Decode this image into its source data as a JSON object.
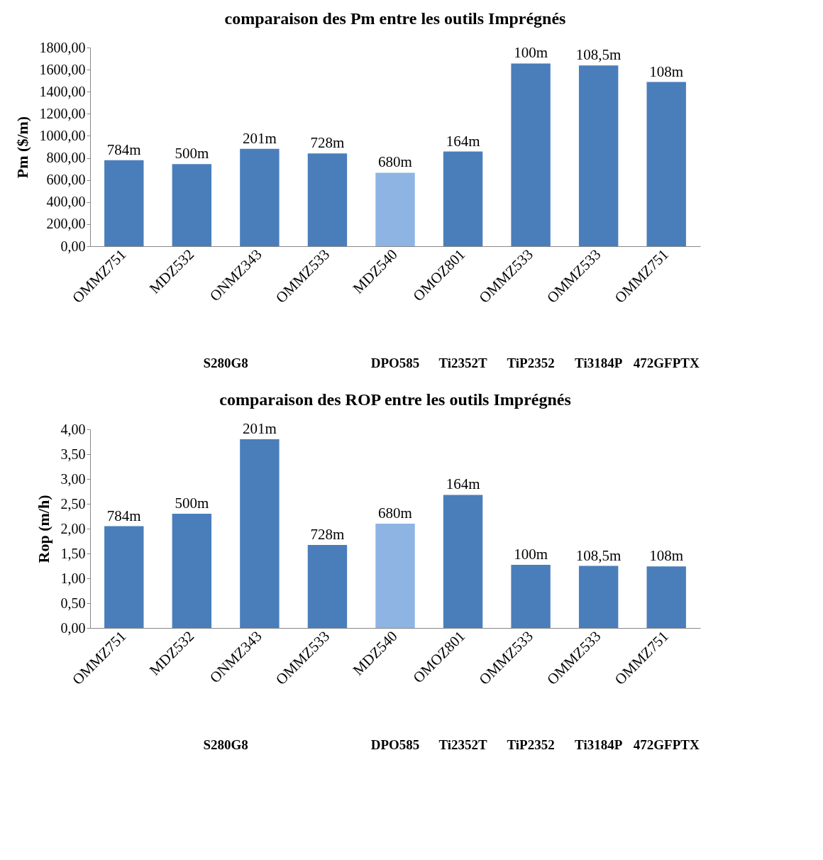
{
  "chart_data": [
    {
      "type": "bar",
      "title": "comparaison des Pm entre les outils  Imprégnés",
      "ylabel": "Pm ($/m)",
      "categories": [
        "OMMZ751",
        "MDZ532",
        "ONMZ343",
        "OMMZ533",
        "MDZ540",
        "OMOZ801",
        "OMMZ533",
        "OMMZ533",
        "OMMZ751"
      ],
      "values": [
        780,
        744,
        882,
        840,
        666,
        858,
        1656,
        1638,
        1488
      ],
      "colors": [
        "#4a7ebb",
        "#4a7ebb",
        "#4a7ebb",
        "#4a7ebb",
        "#8eb4e3",
        "#4a7ebb",
        "#4a7ebb",
        "#4a7ebb",
        "#4a7ebb"
      ],
      "ylim": [
        0,
        1800
      ],
      "yticks": [
        {
          "value": 0,
          "label": "0,00"
        },
        {
          "value": 200,
          "label": "200,00"
        },
        {
          "value": 400,
          "label": "400,00"
        },
        {
          "value": 600,
          "label": "600,00"
        },
        {
          "value": 800,
          "label": "800,00"
        },
        {
          "value": 1000,
          "label": "1000,00"
        },
        {
          "value": 1200,
          "label": "1200,00"
        },
        {
          "value": 1400,
          "label": "1400,00"
        },
        {
          "value": 1600,
          "label": "1600,00"
        },
        {
          "value": 1800,
          "label": "1800,00"
        }
      ],
      "annotations": [
        "784m",
        "500m",
        "201m",
        "728m",
        "680m",
        "164m",
        "100m",
        "108,5m",
        "108m",
        "S280G8",
        "DPO585",
        "Ti2352T",
        "TiP2352",
        "Ti3184P",
        "472GFPTX"
      ],
      "grid": false
    },
    {
      "type": "bar",
      "title": "comparaison des ROP entre les outils  Imprégnés",
      "ylabel": "Rop  (m/h)",
      "categories": [
        "OMMZ751",
        "MDZ532",
        "ONMZ343",
        "OMMZ533",
        "MDZ540",
        "OMOZ801",
        "OMMZ533",
        "OMMZ533",
        "OMMZ751"
      ],
      "values": [
        2.05,
        2.3,
        3.8,
        1.67,
        2.1,
        2.68,
        1.27,
        1.25,
        1.24
      ],
      "colors": [
        "#4a7ebb",
        "#4a7ebb",
        "#4a7ebb",
        "#4a7ebb",
        "#8eb4e3",
        "#4a7ebb",
        "#4a7ebb",
        "#4a7ebb",
        "#4a7ebb"
      ],
      "ylim": [
        0,
        4
      ],
      "yticks": [
        {
          "value": 0,
          "label": "0,00"
        },
        {
          "value": 0.5,
          "label": "0,50"
        },
        {
          "value": 1,
          "label": "1,00"
        },
        {
          "value": 1.5,
          "label": "1,50"
        },
        {
          "value": 2,
          "label": "2,00"
        },
        {
          "value": 2.5,
          "label": "2,50"
        },
        {
          "value": 3,
          "label": "3,00"
        },
        {
          "value": 3.5,
          "label": "3,50"
        },
        {
          "value": 4,
          "label": "4,00"
        }
      ],
      "annotations": [
        "784m",
        "500m",
        "201m",
        "728m",
        "680m",
        "164m",
        "100m",
        "108,5m",
        "108m",
        "S280G8",
        "DPO585",
        "Ti2352T",
        "TiP2352",
        "Ti3184P",
        "472GFPTX"
      ],
      "grid": false
    }
  ]
}
